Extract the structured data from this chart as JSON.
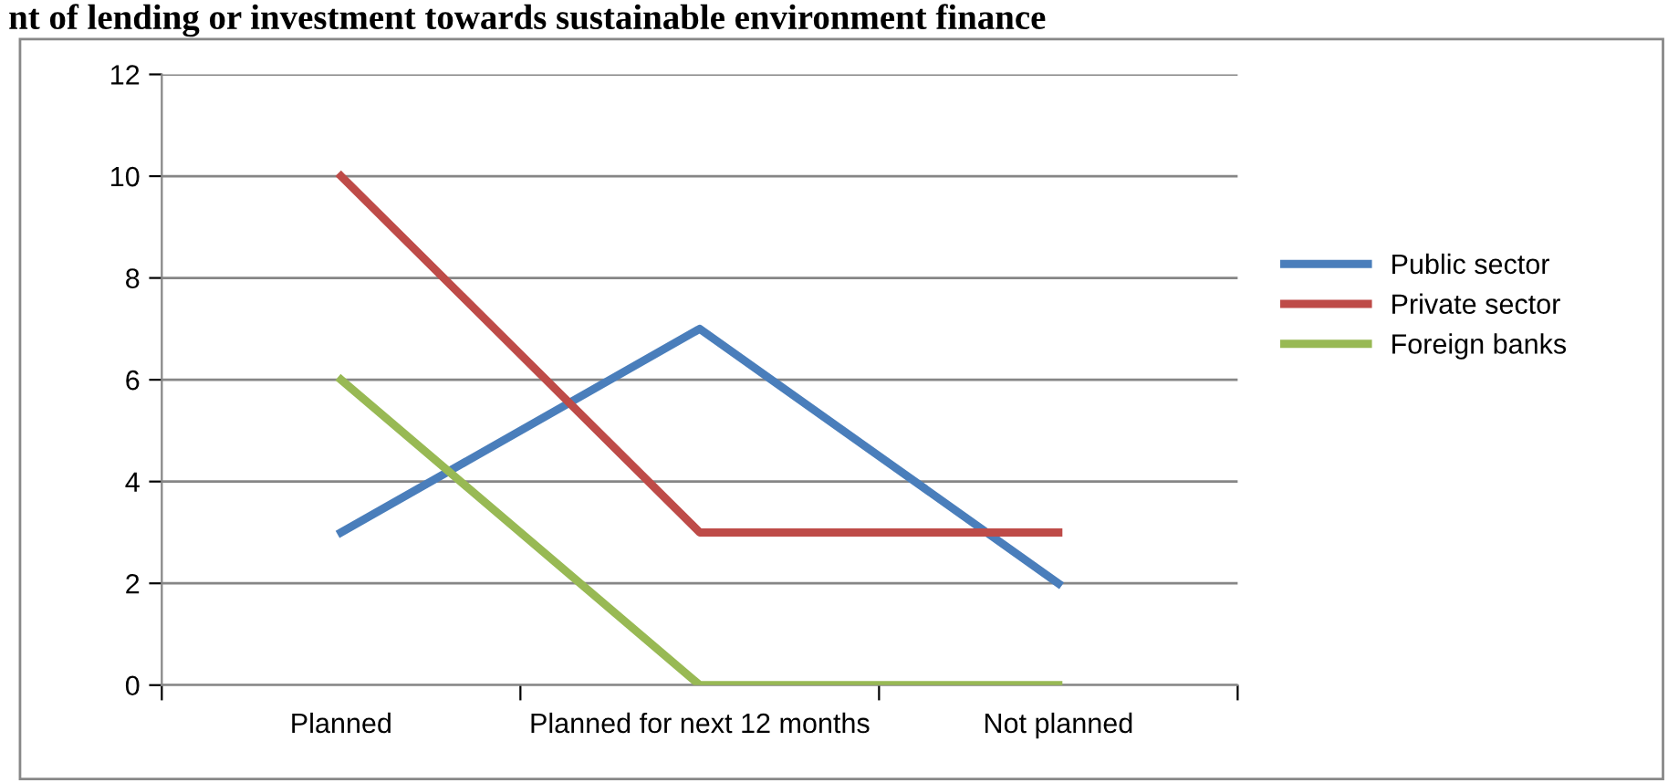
{
  "chart_data": {
    "type": "line",
    "title": "nt of lending or investment towards sustainable environment finance",
    "categories": [
      "Planned",
      "Planned for next 12 months",
      "Not planned"
    ],
    "series": [
      {
        "name": "Public sector",
        "color": "#4a7ebb",
        "values": [
          3,
          7,
          2
        ]
      },
      {
        "name": "Private sector",
        "color": "#be4b48",
        "values": [
          10,
          3,
          3
        ]
      },
      {
        "name": "Foreign banks",
        "color": "#98b954",
        "values": [
          6,
          0,
          0
        ]
      }
    ],
    "ylim": [
      0,
      12
    ],
    "yticks": [
      0,
      2,
      4,
      6,
      8,
      10,
      12
    ],
    "grid": "y",
    "legend": "right",
    "marker": "none",
    "line_style": "solid"
  }
}
